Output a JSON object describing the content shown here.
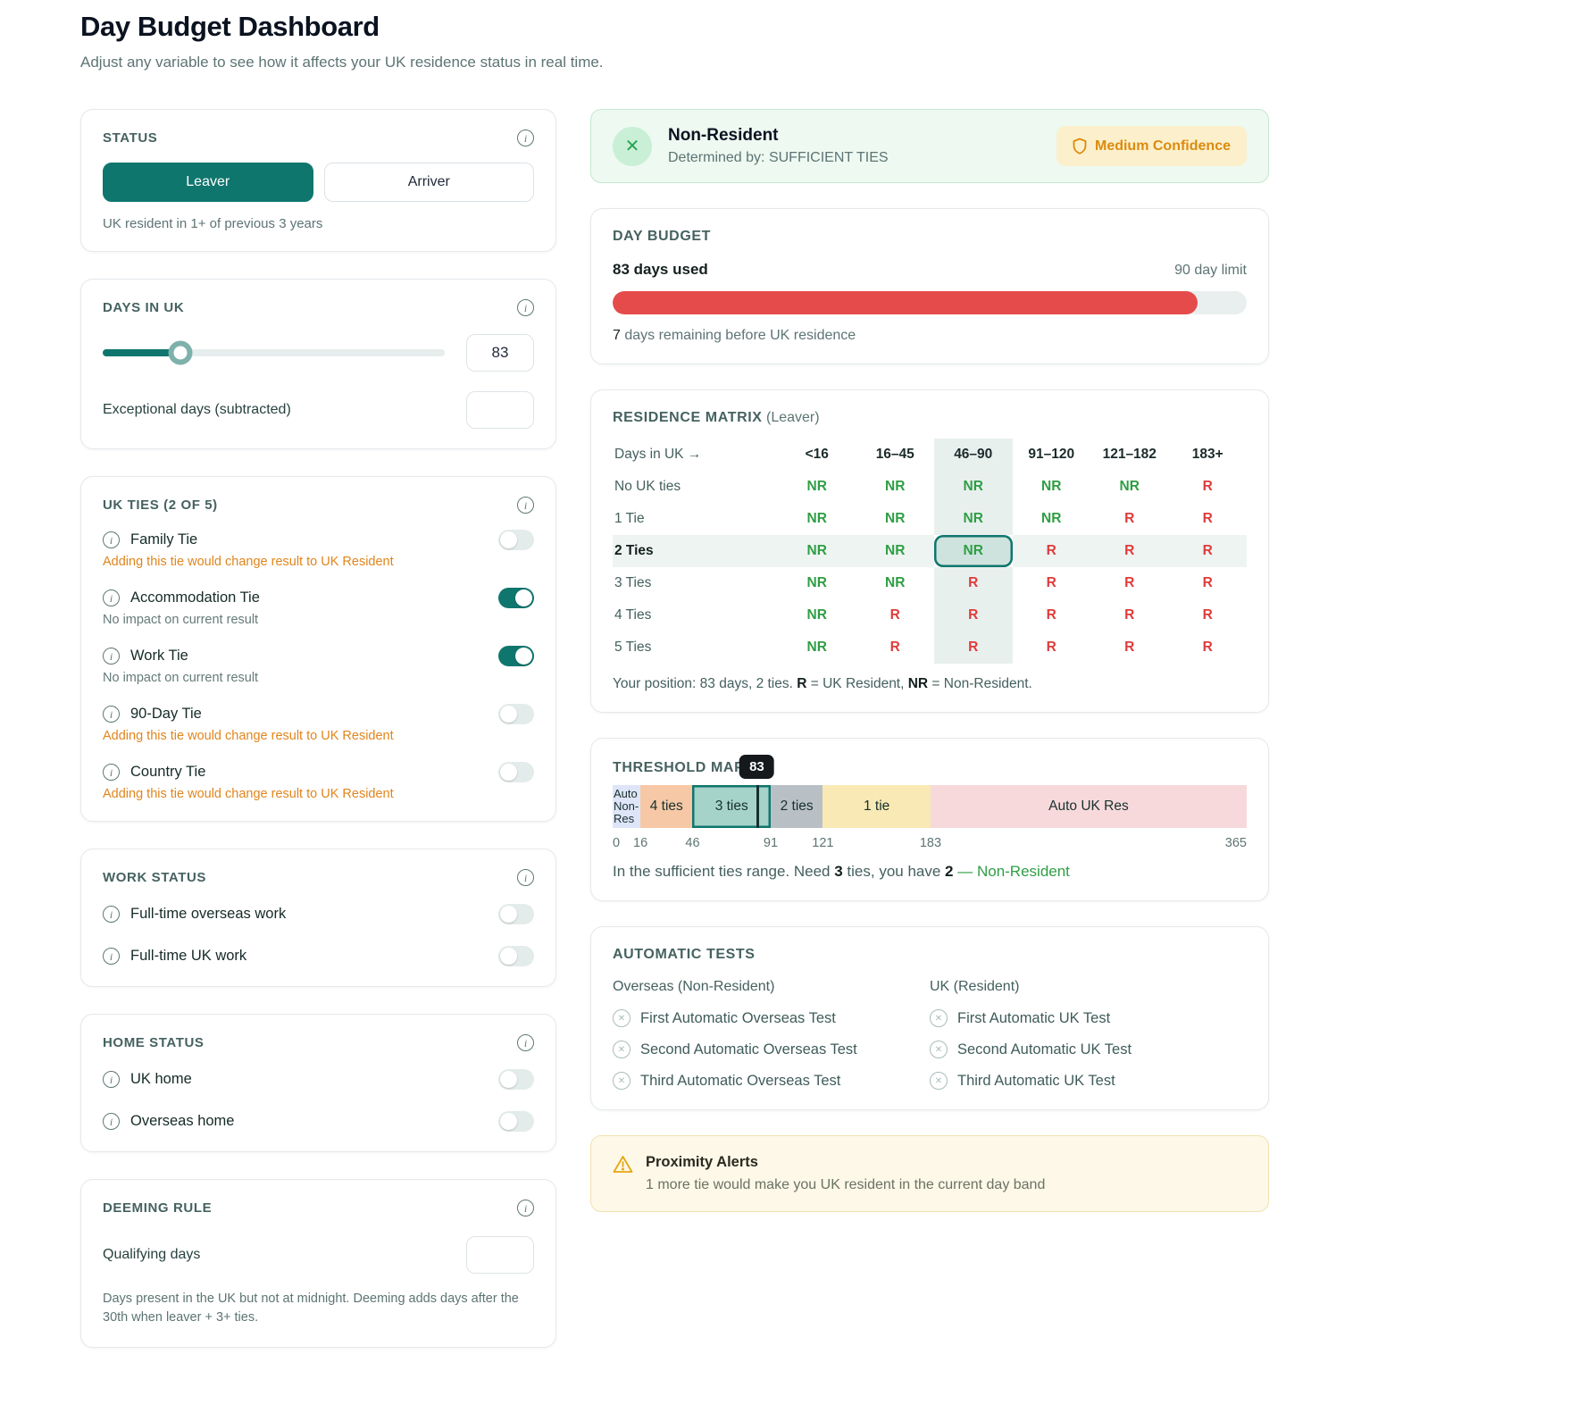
{
  "colors": {
    "teal": "#0f766e",
    "green": "#2f9e44",
    "red": "#e03b3b",
    "orange": "#e0851c",
    "progress_red": "#e54b4b"
  },
  "header": {
    "title": "Day Budget Dashboard",
    "subtitle": "Adjust any variable to see how it affects your UK residence status in real time."
  },
  "status_card": {
    "title": "STATUS",
    "options": [
      {
        "label": "Leaver",
        "selected": true
      },
      {
        "label": "Arriver",
        "selected": false
      }
    ],
    "note": "UK resident in 1+ of previous 3 years"
  },
  "days_card": {
    "title": "DAYS IN UK",
    "value": "83",
    "max": 365,
    "exceptional_label": "Exceptional days (subtracted)",
    "exceptional_value": ""
  },
  "ties_card": {
    "title": "UK TIES (2 OF 5)",
    "ties": [
      {
        "label": "Family Tie",
        "on": false,
        "note": "Adding this tie would change result to UK Resident",
        "warning": true
      },
      {
        "label": "Accommodation Tie",
        "on": true,
        "note": "No impact on current result",
        "warning": false
      },
      {
        "label": "Work Tie",
        "on": true,
        "note": "No impact on current result",
        "warning": false
      },
      {
        "label": "90-Day Tie",
        "on": false,
        "note": "Adding this tie would change result to UK Resident",
        "warning": true
      },
      {
        "label": "Country Tie",
        "on": false,
        "note": "Adding this tie would change result to UK Resident",
        "warning": true
      }
    ]
  },
  "work_card": {
    "title": "WORK STATUS",
    "items": [
      {
        "label": "Full-time overseas work",
        "on": false
      },
      {
        "label": "Full-time UK work",
        "on": false
      }
    ]
  },
  "home_card": {
    "title": "HOME STATUS",
    "items": [
      {
        "label": "UK home",
        "on": false
      },
      {
        "label": "Overseas home",
        "on": false
      }
    ]
  },
  "deeming_card": {
    "title": "DEEMING RULE",
    "field_label": "Qualifying days",
    "field_value": "",
    "note": "Days present in the UK but not at midnight. Deeming adds days after the 30th when leaver + 3+ ties."
  },
  "result_banner": {
    "title": "Non-Resident",
    "subtitle": "Determined by: SUFFICIENT TIES",
    "badge": "Medium Confidence"
  },
  "day_budget": {
    "title": "DAY BUDGET",
    "used_label": "83 days used",
    "limit_label": "90 day limit",
    "used": 83,
    "limit": 90,
    "remaining_parts": [
      {
        "text": "7",
        "bold": true
      },
      {
        "text": " days remaining before UK residence"
      }
    ]
  },
  "matrix": {
    "title": "RESIDENCE MATRIX",
    "subtitle": " (Leaver)",
    "corner_label": "Days in UK →",
    "columns": [
      "<16",
      "16–45",
      "46–90",
      "91–120",
      "121–182",
      "183+"
    ],
    "active_column": 2,
    "active_row": 2,
    "rows": [
      {
        "label": "No UK ties",
        "values": [
          "NR",
          "NR",
          "NR",
          "NR",
          "NR",
          "R"
        ]
      },
      {
        "label": "1 Tie",
        "values": [
          "NR",
          "NR",
          "NR",
          "NR",
          "R",
          "R"
        ]
      },
      {
        "label": "2 Ties",
        "values": [
          "NR",
          "NR",
          "NR",
          "R",
          "R",
          "R"
        ]
      },
      {
        "label": "3 Ties",
        "values": [
          "NR",
          "NR",
          "R",
          "R",
          "R",
          "R"
        ]
      },
      {
        "label": "4 Ties",
        "values": [
          "NR",
          "R",
          "R",
          "R",
          "R",
          "R"
        ]
      },
      {
        "label": "5 Ties",
        "values": [
          "NR",
          "R",
          "R",
          "R",
          "R",
          "R"
        ]
      }
    ],
    "footer_parts": [
      {
        "text": "Your position: 83 days, 2 ties. "
      },
      {
        "text": "R",
        "bold": true
      },
      {
        "text": " = UK Resident, "
      },
      {
        "text": "NR",
        "bold": true
      },
      {
        "text": " = Non-Resident."
      }
    ]
  },
  "threshold": {
    "title": "THRESHOLD MAP",
    "marker_value": 83,
    "marker_label": "83",
    "axis_max": 365,
    "segments": [
      {
        "label": "Auto Non-Res",
        "from": 0,
        "to": 16,
        "color": "#dfe5f9",
        "active": false
      },
      {
        "label": "4 ties",
        "from": 16,
        "to": 46,
        "color": "#f6c8a6",
        "active": false
      },
      {
        "label": "3 ties",
        "from": 46,
        "to": 91,
        "color": "#a5d3ca",
        "active": true
      },
      {
        "label": "2 ties",
        "from": 91,
        "to": 121,
        "color": "#b9c0c5",
        "active": false
      },
      {
        "label": "1 tie",
        "from": 121,
        "to": 183,
        "color": "#f9e9b4",
        "active": false
      },
      {
        "label": "Auto UK Res",
        "from": 183,
        "to": 365,
        "color": "#f7d9dc",
        "active": false
      }
    ],
    "ticks": [
      0,
      16,
      46,
      91,
      121,
      183,
      365
    ],
    "summary_parts": [
      {
        "text": "In the sufficient ties range. Need "
      },
      {
        "text": "3",
        "bold": true
      },
      {
        "text": " ties, you have "
      },
      {
        "text": "2",
        "bold": true
      },
      {
        "text": " — Non-Resident",
        "cls": "green"
      }
    ]
  },
  "auto_tests": {
    "title": "AUTOMATIC TESTS",
    "groups": [
      {
        "heading": "Overseas (Non-Resident)",
        "items": [
          "First Automatic Overseas Test",
          "Second Automatic Overseas Test",
          "Third Automatic Overseas Test"
        ]
      },
      {
        "heading": "UK (Resident)",
        "items": [
          "First Automatic UK Test",
          "Second Automatic UK Test",
          "Third Automatic UK Test"
        ]
      }
    ]
  },
  "proximity": {
    "title": "Proximity Alerts",
    "message": "1 more tie would make you UK resident in the current day band"
  }
}
